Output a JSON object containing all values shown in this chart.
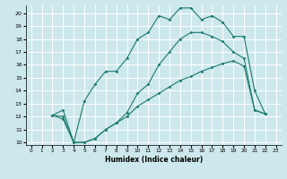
{
  "xlabel": "Humidex (Indice chaleur)",
  "bg_color": "#cde8ec",
  "grid_color": "#ffffff",
  "line_color": "#1a7a6e",
  "xlim": [
    -0.5,
    23.5
  ],
  "ylim": [
    9.8,
    20.6
  ],
  "yticks": [
    10,
    11,
    12,
    13,
    14,
    15,
    16,
    17,
    18,
    19,
    20
  ],
  "xticks": [
    0,
    1,
    2,
    3,
    4,
    5,
    6,
    7,
    8,
    9,
    10,
    11,
    12,
    13,
    14,
    15,
    16,
    17,
    18,
    19,
    20,
    21,
    22,
    23
  ],
  "line1_x": [
    2,
    3,
    4,
    5,
    6,
    7,
    8,
    9,
    10,
    11,
    12,
    13,
    14,
    15,
    16,
    17,
    18,
    19,
    20,
    21,
    22
  ],
  "line1_y": [
    12.1,
    12.5,
    10.0,
    13.2,
    14.5,
    15.5,
    15.5,
    16.5,
    18.0,
    18.5,
    19.8,
    19.5,
    20.4,
    20.4,
    19.5,
    19.8,
    19.3,
    18.2,
    18.2,
    14.0,
    12.2
  ],
  "line2_x": [
    2,
    3,
    4,
    5,
    6,
    7,
    8,
    9,
    10,
    11,
    12,
    13,
    14,
    15,
    16,
    17,
    18,
    19,
    20,
    21,
    22
  ],
  "line2_y": [
    12.1,
    11.8,
    10.0,
    10.0,
    10.3,
    11.0,
    11.5,
    12.0,
    12.8,
    13.3,
    13.8,
    14.3,
    14.8,
    15.1,
    15.5,
    15.8,
    16.1,
    16.3,
    15.9,
    12.5,
    12.2
  ],
  "line3_x": [
    2,
    3,
    4,
    5,
    6,
    7,
    8,
    9,
    10,
    11,
    12,
    13,
    14,
    15,
    16,
    17,
    18,
    19,
    20,
    21,
    22
  ],
  "line3_y": [
    12.1,
    12.0,
    10.0,
    10.0,
    10.3,
    11.0,
    11.5,
    12.3,
    13.8,
    14.5,
    16.0,
    17.0,
    18.0,
    18.5,
    18.5,
    18.2,
    17.8,
    17.0,
    16.5,
    12.5,
    12.2
  ]
}
